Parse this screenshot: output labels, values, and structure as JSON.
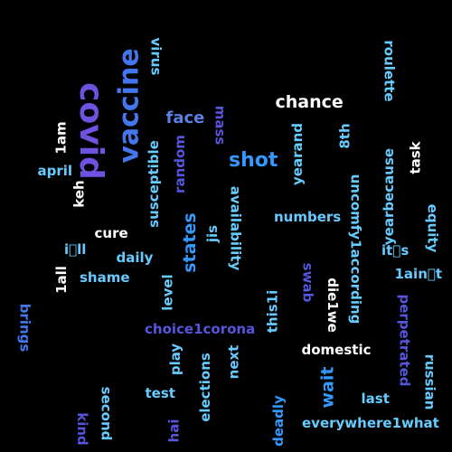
{
  "background": "#000000",
  "palette": {
    "white": "#ffffff",
    "light_blue": "#66ccff",
    "blue": "#4477ee",
    "blue_violet": "#5555dd",
    "violet": "#6f52e0",
    "sky": "#3399ff",
    "cornflower": "#5a7fe6"
  },
  "words": [
    {
      "text": "covid"
    },
    {
      "text": "vaccine"
    },
    {
      "text": "shot"
    },
    {
      "text": "chance"
    },
    {
      "text": "face"
    },
    {
      "text": "virus"
    },
    {
      "text": "mass"
    },
    {
      "text": "roulette"
    },
    {
      "text": "1am"
    },
    {
      "text": "april"
    },
    {
      "text": "keh"
    },
    {
      "text": "random"
    },
    {
      "text": "susceptible"
    },
    {
      "text": "yearand"
    },
    {
      "text": "8th"
    },
    {
      "text": "task"
    },
    {
      "text": "availability"
    },
    {
      "text": "uncomfy1according"
    },
    {
      "text": "yearbecause"
    },
    {
      "text": "states"
    },
    {
      "text": "cure"
    },
    {
      "text": "numbers"
    },
    {
      "text": "equity"
    },
    {
      "text": "jis"
    },
    {
      "text": "i􀀀ll"
    },
    {
      "text": "it􀀀s"
    },
    {
      "text": "daily"
    },
    {
      "text": "1all"
    },
    {
      "text": "shame"
    },
    {
      "text": "swab"
    },
    {
      "text": "die1we"
    },
    {
      "text": "1ain􀀀t"
    },
    {
      "text": "level"
    },
    {
      "text": "this1i"
    },
    {
      "text": "brings"
    },
    {
      "text": "choice1corona"
    },
    {
      "text": "perpetrated"
    },
    {
      "text": "play"
    },
    {
      "text": "next"
    },
    {
      "text": "domestic"
    },
    {
      "text": "wait"
    },
    {
      "text": "test"
    },
    {
      "text": "elections"
    },
    {
      "text": "second"
    },
    {
      "text": "last"
    },
    {
      "text": "russian"
    },
    {
      "text": "deadly"
    },
    {
      "text": "kind"
    },
    {
      "text": "hai"
    },
    {
      "text": "everywhere1what"
    }
  ]
}
